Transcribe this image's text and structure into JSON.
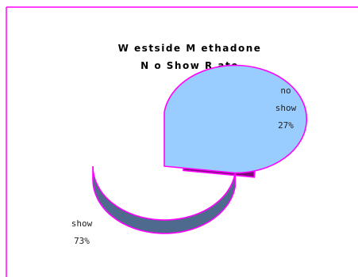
{
  "chart_data": {
    "type": "pie",
    "style": "3d-exploded",
    "title_lines": [
      "W estside M ethadone",
      "N o Show R ate"
    ],
    "slices": [
      {
        "name": "no show",
        "label_lines": [
          "no",
          "show"
        ],
        "value": 27,
        "percent_label": "27%",
        "color": "#ff00ff",
        "side_color": "#7a0a7a",
        "exploded": true
      },
      {
        "name": "show",
        "label_lines": [
          "show"
        ],
        "value": 73,
        "percent_label": "73%",
        "color": "#99ccff",
        "side_color": "#4e6a8c",
        "exploded": false
      }
    ],
    "outline_color": "#ff00ff",
    "legend": "none"
  }
}
